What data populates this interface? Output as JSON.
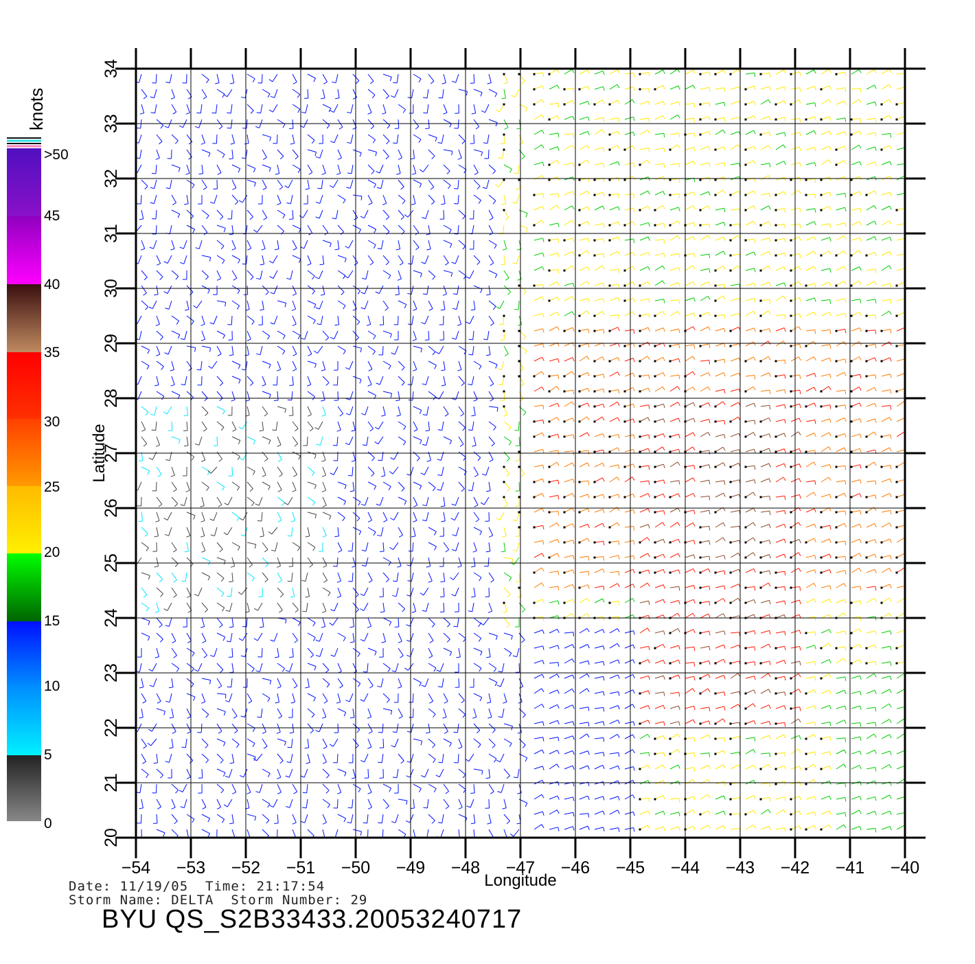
{
  "map": {
    "x_ticks": [
      "−54",
      "−53",
      "−52",
      "−51",
      "−50",
      "−49",
      "−48",
      "−47",
      "−46",
      "−45",
      "−44",
      "−43",
      "−42",
      "−41",
      "−40"
    ],
    "y_ticks": [
      "20",
      "21",
      "22",
      "23",
      "24",
      "25",
      "26",
      "27",
      "28",
      "29",
      "30",
      "31",
      "32",
      "33",
      "34"
    ],
    "x_label": "Longitude",
    "y_label": "Latitude",
    "lon_range": [
      -54,
      -40
    ],
    "lat_range": [
      20,
      34
    ]
  },
  "legend": {
    "unit": "knots",
    "labels": [
      ">50",
      "45",
      "40",
      "35",
      "30",
      "25",
      "20",
      "15",
      "10",
      "5",
      "0"
    ],
    "colors": {
      "gray": "#7a7a7a",
      "cyan": "#00e5ff",
      "blue": "#0010ff",
      "green": "#00cc00",
      "yellow": "#ffe800",
      "orange": "#ff7a00",
      "red": "#ff1a00",
      "brown": "#8a4a2a",
      "magenta": "#ee00ee",
      "purple": "#6010c0"
    }
  },
  "footer": {
    "date_line": "Date: 11/19/05  Time: 21:17:54",
    "storm_line": "Storm Name: DELTA  Storm Number: 29",
    "title": "BYU QS_S2B33433.20053240717"
  }
}
